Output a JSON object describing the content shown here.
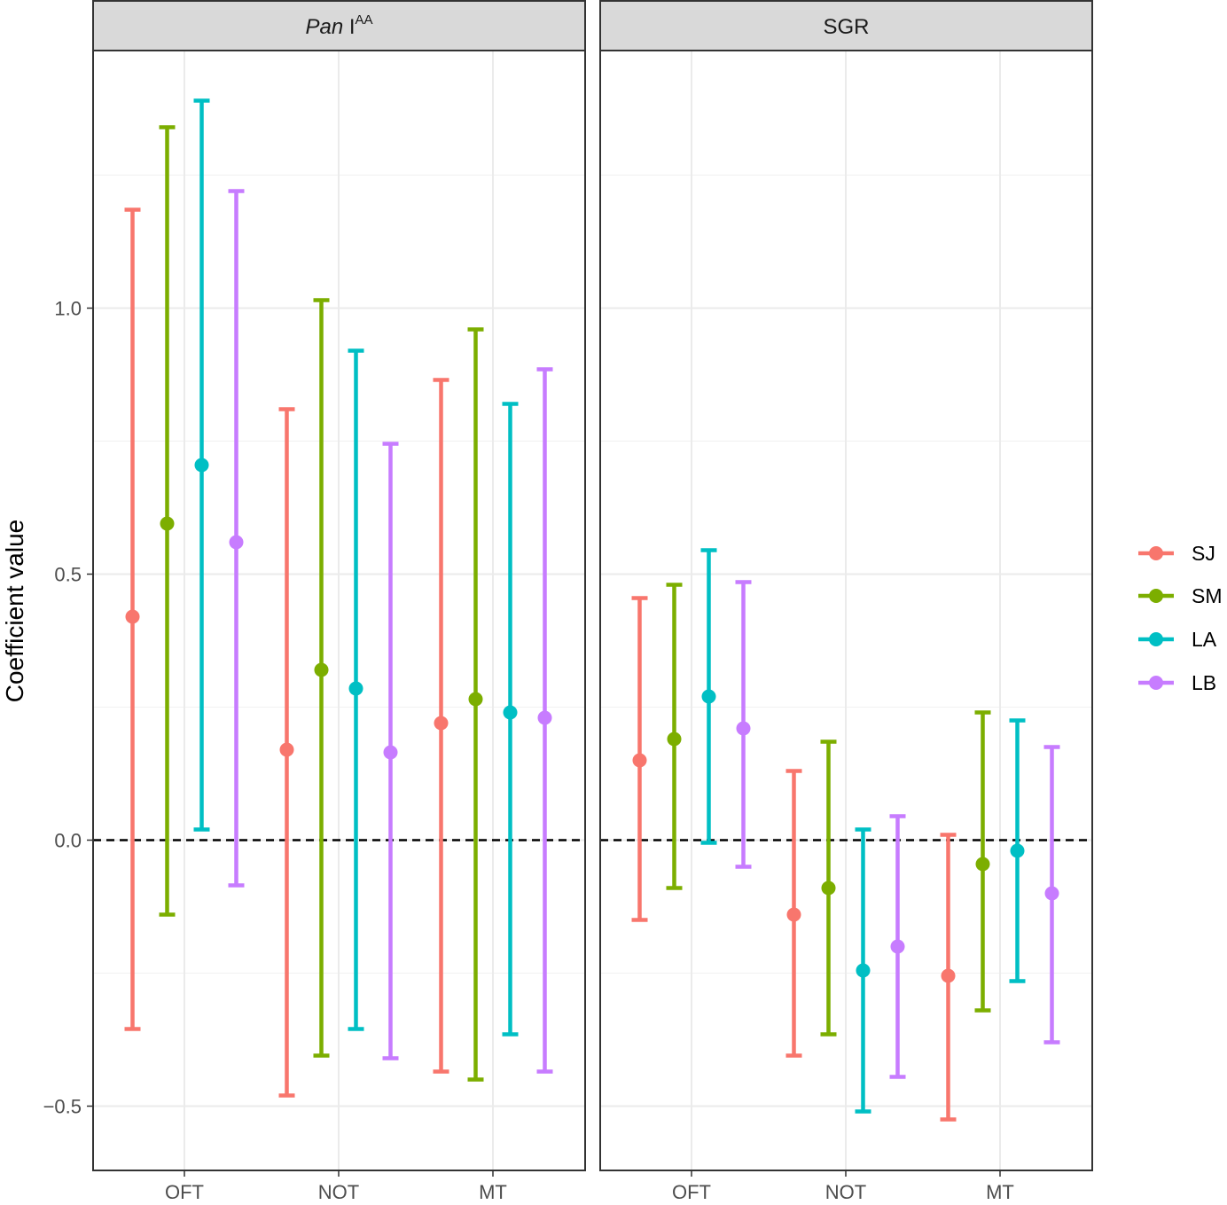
{
  "chart_data": {
    "type": "errorbar",
    "ylabel": "Coefficient value",
    "categories": [
      "OFT",
      "NOT",
      "MT"
    ],
    "ylim": [
      -0.62,
      1.48
    ],
    "yticks": [
      -0.5,
      0.0,
      0.5,
      1.0
    ],
    "ytick_labels": [
      "−0.5",
      "0.0",
      "0.5",
      "1.0"
    ],
    "reference_line": {
      "y": 0,
      "style": "dashed"
    },
    "grid": true,
    "legend_position": "right",
    "series": [
      {
        "name": "SJ",
        "color": "#F8766D"
      },
      {
        "name": "SM",
        "color": "#7CAE00"
      },
      {
        "name": "LA",
        "color": "#00BFC4"
      },
      {
        "name": "LB",
        "color": "#C77CFF"
      }
    ],
    "panels": [
      {
        "title_main": "Pan",
        "title_rest": "I",
        "title_sup": "AA",
        "data": {
          "SJ": [
            {
              "y": 0.42,
              "low": -0.355,
              "high": 1.185
            },
            {
              "y": 0.17,
              "low": -0.48,
              "high": 0.81
            },
            {
              "y": 0.22,
              "low": -0.435,
              "high": 0.865
            }
          ],
          "SM": [
            {
              "y": 0.595,
              "low": -0.14,
              "high": 1.34
            },
            {
              "y": 0.32,
              "low": -0.405,
              "high": 1.015
            },
            {
              "y": 0.265,
              "low": -0.45,
              "high": 0.96
            }
          ],
          "LA": [
            {
              "y": 0.705,
              "low": 0.02,
              "high": 1.39
            },
            {
              "y": 0.285,
              "low": -0.355,
              "high": 0.92
            },
            {
              "y": 0.24,
              "low": -0.365,
              "high": 0.82
            }
          ],
          "LB": [
            {
              "y": 0.56,
              "low": -0.085,
              "high": 1.22
            },
            {
              "y": 0.165,
              "low": -0.41,
              "high": 0.745
            },
            {
              "y": 0.23,
              "low": -0.435,
              "high": 0.885
            }
          ]
        }
      },
      {
        "title_main": "SGR",
        "title_rest": "",
        "title_sup": "",
        "data": {
          "SJ": [
            {
              "y": 0.15,
              "low": -0.15,
              "high": 0.455
            },
            {
              "y": -0.14,
              "low": -0.405,
              "high": 0.13
            },
            {
              "y": -0.255,
              "low": -0.525,
              "high": 0.01
            }
          ],
          "SM": [
            {
              "y": 0.19,
              "low": -0.09,
              "high": 0.48
            },
            {
              "y": -0.09,
              "low": -0.365,
              "high": 0.185
            },
            {
              "y": -0.045,
              "low": -0.32,
              "high": 0.24
            }
          ],
          "LA": [
            {
              "y": 0.27,
              "low": -0.005,
              "high": 0.545
            },
            {
              "y": -0.245,
              "low": -0.51,
              "high": 0.02
            },
            {
              "y": -0.02,
              "low": -0.265,
              "high": 0.225
            }
          ],
          "LB": [
            {
              "y": 0.21,
              "low": -0.05,
              "high": 0.485
            },
            {
              "y": -0.2,
              "low": -0.445,
              "high": 0.045
            },
            {
              "y": -0.1,
              "low": -0.38,
              "high": 0.175
            }
          ]
        }
      }
    ]
  }
}
